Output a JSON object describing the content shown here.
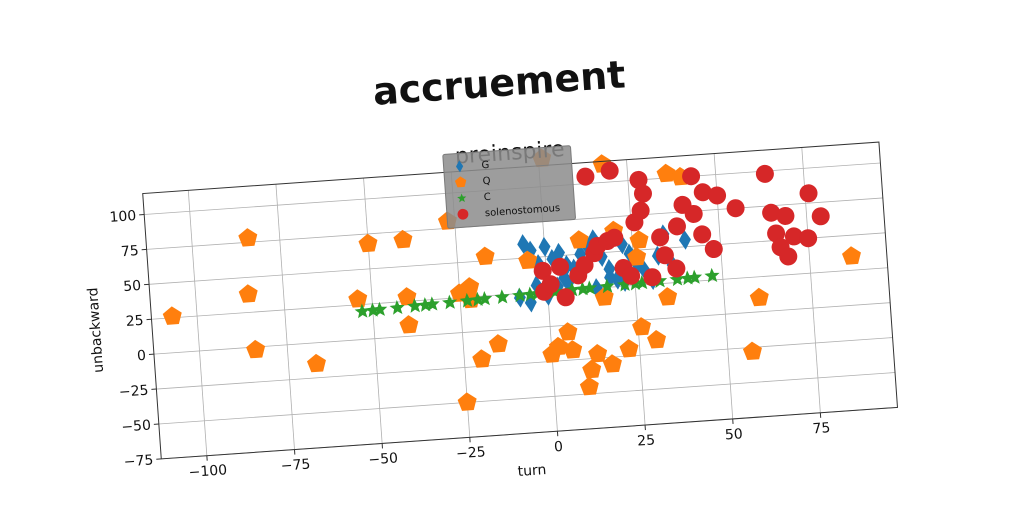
{
  "chart_data": {
    "type": "scatter",
    "suptitle": "accruement",
    "title": "preinspire",
    "xlabel": "turn",
    "ylabel": "unbackward",
    "xlim": [
      -113,
      97
    ],
    "ylim": [
      -75,
      115
    ],
    "xticks": [
      -100,
      -75,
      -50,
      -25,
      0,
      25,
      50,
      75
    ],
    "yticks": [
      -75,
      -50,
      -25,
      0,
      25,
      50,
      75,
      100
    ],
    "xtick_labels": [
      "−100",
      "−75",
      "−50",
      "−25",
      "0",
      "25",
      "50",
      "75"
    ],
    "ytick_labels": [
      "−75",
      "−50",
      "−25",
      "0",
      "25",
      "50",
      "75",
      "100"
    ],
    "grid": true,
    "legend_position": "top-center",
    "series": [
      {
        "name": "G",
        "marker": "diamond",
        "color": "#1f77b4",
        "points": [
          [
            -6,
            60
          ],
          [
            -4,
            55
          ],
          [
            -2,
            45
          ],
          [
            0,
            57
          ],
          [
            2,
            48
          ],
          [
            4,
            52
          ],
          [
            6,
            43
          ],
          [
            -3,
            30
          ],
          [
            0,
            22
          ],
          [
            3,
            28
          ],
          [
            5,
            34
          ],
          [
            8,
            40
          ],
          [
            10,
            50
          ],
          [
            12,
            56
          ],
          [
            14,
            60
          ],
          [
            16,
            47
          ],
          [
            18,
            38
          ],
          [
            20,
            30
          ],
          [
            22,
            55
          ],
          [
            24,
            48
          ],
          [
            26,
            40
          ],
          [
            28,
            35
          ],
          [
            30,
            28
          ],
          [
            32,
            45
          ],
          [
            34,
            60
          ],
          [
            36,
            38
          ],
          [
            40,
            55
          ],
          [
            -5,
            18
          ],
          [
            -8,
            22
          ],
          [
            6,
            30
          ],
          [
            10,
            36
          ],
          [
            14,
            25
          ],
          [
            18,
            32
          ],
          [
            22,
            28
          ]
        ]
      },
      {
        "name": "Q",
        "marker": "pentagon",
        "color": "#ff7f0e",
        "points": [
          [
            -107,
            26
          ],
          [
            -84,
            78
          ],
          [
            -85,
            38
          ],
          [
            -84,
            -2
          ],
          [
            -67,
            -15
          ],
          [
            -54,
            29
          ],
          [
            -50,
            68
          ],
          [
            -40,
            69
          ],
          [
            -40,
            28
          ],
          [
            -40,
            8
          ],
          [
            -27,
            80
          ],
          [
            -25,
            28
          ],
          [
            -22,
            32
          ],
          [
            -22,
            23
          ],
          [
            -20,
            -20
          ],
          [
            -17,
            53
          ],
          [
            -25,
            -50
          ],
          [
            -15,
            -10
          ],
          [
            -5,
            48
          ],
          [
            0,
            -20
          ],
          [
            2,
            -15
          ],
          [
            5,
            -5
          ],
          [
            6,
            -18
          ],
          [
            10,
            -45
          ],
          [
            11,
            -33
          ],
          [
            13,
            -22
          ],
          [
            16,
            18
          ],
          [
            17,
            -30
          ],
          [
            10,
            60
          ],
          [
            20,
            65
          ],
          [
            22,
            -20
          ],
          [
            26,
            -5
          ],
          [
            26,
            45
          ],
          [
            27,
            57
          ],
          [
            30,
            -15
          ],
          [
            34,
            15
          ],
          [
            36,
            103
          ],
          [
            40,
            100
          ],
          [
            57,
            -28
          ],
          [
            60,
            10
          ],
          [
            87,
            35
          ],
          [
            1,
            120
          ],
          [
            18,
            113
          ]
        ]
      },
      {
        "name": "C",
        "marker": "star",
        "color": "#2ca02c",
        "points": [
          [
            -53,
            20
          ],
          [
            -48,
            20.4
          ],
          [
            -43,
            20.8
          ],
          [
            -38,
            21.2
          ],
          [
            -33,
            21.6
          ],
          [
            -28,
            22
          ],
          [
            -23,
            22.4
          ],
          [
            -18,
            22.8
          ],
          [
            -13,
            23.2
          ],
          [
            -8,
            23.6
          ],
          [
            -3,
            24
          ],
          [
            2,
            24.4
          ],
          [
            7,
            24.8
          ],
          [
            12,
            25.2
          ],
          [
            17,
            25.6
          ],
          [
            22,
            26
          ],
          [
            27,
            26.4
          ],
          [
            32,
            26.8
          ],
          [
            37,
            27.2
          ],
          [
            42,
            27.6
          ],
          [
            47,
            28
          ],
          [
            -50,
            20.2
          ],
          [
            -35,
            21.4
          ],
          [
            -20,
            22.6
          ],
          [
            -5,
            23.8
          ],
          [
            10,
            25
          ],
          [
            25,
            26.2
          ],
          [
            40,
            27.4
          ]
        ]
      },
      {
        "name": "solenostomous",
        "marker": "circle",
        "color": "#d62728",
        "points": [
          [
            -1,
            40
          ],
          [
            -1,
            25
          ],
          [
            1,
            30
          ],
          [
            4,
            42
          ],
          [
            5,
            20
          ],
          [
            9,
            35
          ],
          [
            11,
            42
          ],
          [
            14,
            50
          ],
          [
            15,
            55
          ],
          [
            18,
            58
          ],
          [
            20,
            60
          ],
          [
            22,
            38
          ],
          [
            24,
            32
          ],
          [
            26,
            70
          ],
          [
            28,
            78
          ],
          [
            29,
            90
          ],
          [
            28,
            100
          ],
          [
            30,
            30
          ],
          [
            33,
            58
          ],
          [
            34,
            45
          ],
          [
            37,
            35
          ],
          [
            38,
            65
          ],
          [
            40,
            80
          ],
          [
            43,
            73
          ],
          [
            43,
            100
          ],
          [
            45,
            58
          ],
          [
            46,
            88
          ],
          [
            48,
            47
          ],
          [
            50,
            85
          ],
          [
            55,
            75
          ],
          [
            64,
            98
          ],
          [
            65,
            70
          ],
          [
            66,
            55
          ],
          [
            67,
            45
          ],
          [
            69,
            38
          ],
          [
            69,
            67
          ],
          [
            71,
            52
          ],
          [
            75,
            50
          ],
          [
            76,
            82
          ],
          [
            79,
            65
          ],
          [
            20,
            108
          ],
          [
            13,
            105
          ]
        ]
      }
    ]
  }
}
